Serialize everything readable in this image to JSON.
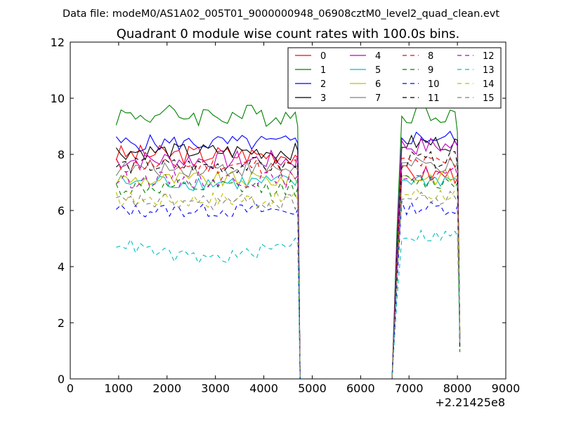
{
  "chart_data": {
    "type": "line",
    "suptitle": "Data file: modeM0/AS1A02_005T01_9000000948_06908cztM0_level2_quad_clean.evt",
    "title": "Quadrant 0 module wise count rates with 100.0s bins.",
    "xlabel": "",
    "ylabel": "",
    "x_offset_label": "+2.21425e8",
    "xlim": [
      0,
      9000
    ],
    "ylim": [
      0,
      12
    ],
    "xticks": [
      0,
      1000,
      2000,
      3000,
      4000,
      5000,
      6000,
      7000,
      8000,
      9000
    ],
    "yticks": [
      0,
      2,
      4,
      6,
      8,
      10,
      12
    ],
    "grid": false,
    "legend_position": "top-right",
    "legend_columns": 4,
    "gap": {
      "start": 4750,
      "end": 6650
    },
    "segment1": {
      "start": 950,
      "end": 4650,
      "step": 100
    },
    "segment2": {
      "start": 6850,
      "end": 7950,
      "step": 100
    },
    "series": [
      {
        "name": "0",
        "color": "#ff0000",
        "dash": "solid",
        "levels": [
          8.0,
          7.3
        ],
        "amp": 0.35
      },
      {
        "name": "1",
        "color": "#008000",
        "dash": "solid",
        "levels": [
          9.4,
          9.5
        ],
        "amp": 0.4,
        "edge": [
          9.0,
          8.8
        ]
      },
      {
        "name": "2",
        "color": "#0000ff",
        "dash": "solid",
        "levels": [
          8.4,
          8.6
        ],
        "amp": 0.3,
        "edge": [
          8.4,
          8.3
        ]
      },
      {
        "name": "3",
        "color": "#000000",
        "dash": "solid",
        "levels": [
          8.1,
          8.4
        ],
        "amp": 0.3
      },
      {
        "name": "4",
        "color": "#bf00bf",
        "dash": "solid",
        "levels": [
          7.8,
          8.3
        ],
        "amp": 0.35,
        "edge": [
          8.0,
          8.3
        ]
      },
      {
        "name": "5",
        "color": "#00bfbf",
        "dash": "solid",
        "levels": [
          7.0,
          7.1
        ],
        "amp": 0.3
      },
      {
        "name": "6",
        "color": "#bfbf00",
        "dash": "solid",
        "levels": [
          7.1,
          7.2
        ],
        "amp": 0.3
      },
      {
        "name": "7",
        "color": "#808080",
        "dash": "solid",
        "levels": [
          7.5,
          7.6
        ],
        "amp": 0.3
      },
      {
        "name": "8",
        "color": "#ff0000",
        "dash": "dashed",
        "levels": [
          7.6,
          7.7
        ],
        "amp": 0.3
      },
      {
        "name": "9",
        "color": "#008000",
        "dash": "dashed",
        "levels": [
          6.8,
          7.0
        ],
        "amp": 0.3
      },
      {
        "name": "10",
        "color": "#0000ff",
        "dash": "dashed",
        "levels": [
          6.0,
          6.1
        ],
        "amp": 0.25
      },
      {
        "name": "11",
        "color": "#000000",
        "dash": "dashed",
        "levels": [
          7.6,
          7.8
        ],
        "amp": 0.3
      },
      {
        "name": "12",
        "color": "#bf00bf",
        "dash": "dashed",
        "levels": [
          7.1,
          7.3
        ],
        "amp": 0.3
      },
      {
        "name": "13",
        "color": "#00bfbf",
        "dash": "dashed",
        "levels": [
          4.9,
          5.1
        ],
        "amp": 0.25,
        "bowl": 0.6
      },
      {
        "name": "14",
        "color": "#bfbf00",
        "dash": "dashed",
        "levels": [
          6.4,
          6.6
        ],
        "amp": 0.3
      },
      {
        "name": "15",
        "color": "#808080",
        "dash": "dashed",
        "levels": [
          6.3,
          6.4
        ],
        "amp": 0.3
      }
    ]
  }
}
